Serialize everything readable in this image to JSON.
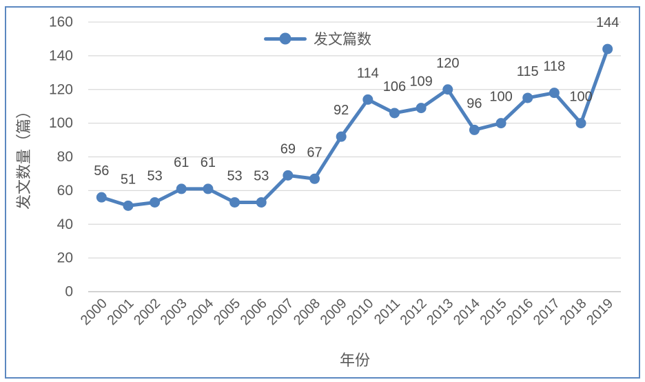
{
  "chart_data": {
    "type": "line",
    "title": "",
    "xlabel": "年份",
    "ylabel": "发文数量（篇）",
    "legend": {
      "label": "发文篇数",
      "position": "top-center"
    },
    "categories": [
      "2000",
      "2001",
      "2002",
      "2003",
      "2004",
      "2005",
      "2006",
      "2007",
      "2008",
      "2009",
      "2010",
      "2011",
      "2012",
      "2013",
      "2014",
      "2015",
      "2016",
      "2017",
      "2018",
      "2019"
    ],
    "series": [
      {
        "name": "发文篇数",
        "values": [
          56,
          51,
          53,
          61,
          61,
          53,
          53,
          69,
          67,
          92,
          114,
          106,
          109,
          120,
          96,
          100,
          115,
          118,
          100,
          144
        ]
      }
    ],
    "ylim": [
      0,
      160
    ],
    "yticks": [
      0,
      20,
      40,
      60,
      80,
      100,
      120,
      140,
      160
    ],
    "grid": "horizontal",
    "marker": "circle",
    "data_labels": "above",
    "colors": {
      "series": "#4f81bd",
      "grid": "#d9d9d9",
      "zero_line": "#c3c3c3",
      "tick_text": "#595959",
      "data_label_text": "#4d4d4d",
      "axis_title_text": "#595959",
      "frame_border": "#5b87c0",
      "background": "#ffffff"
    }
  }
}
